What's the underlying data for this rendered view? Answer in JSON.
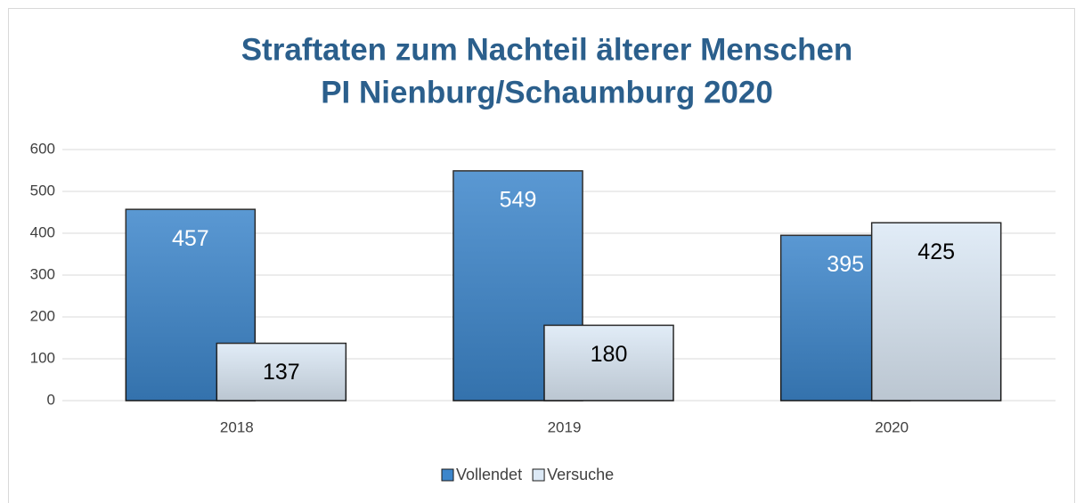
{
  "chart_data": {
    "type": "bar",
    "title": [
      "Straftaten zum Nachteil älterer Menschen",
      "PI Nienburg/Schaumburg 2020"
    ],
    "categories": [
      "2018",
      "2019",
      "2020"
    ],
    "series": [
      {
        "name": "Vollendet",
        "color": "#3d86cb",
        "label_color": "#ffffff",
        "values": [
          457,
          549,
          395
        ]
      },
      {
        "name": "Versuche",
        "color": "#dce9f6",
        "label_color": "#000000",
        "values": [
          137,
          180,
          425
        ]
      }
    ],
    "ylim": [
      0,
      600
    ],
    "yticks": [
      0,
      100,
      200,
      300,
      400,
      500,
      600
    ],
    "grid": true,
    "legend": "bottom"
  }
}
